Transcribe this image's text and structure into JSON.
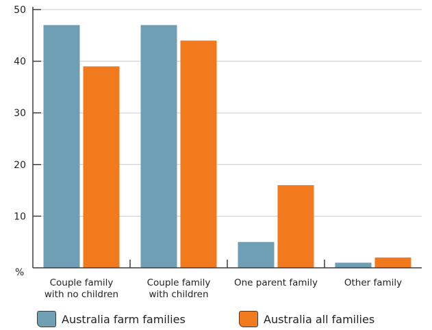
{
  "chart_data": {
    "type": "bar",
    "categories": [
      [
        "Couple family",
        "with no children"
      ],
      [
        "Couple family",
        "with children"
      ],
      [
        "One parent family"
      ],
      [
        "Other family"
      ]
    ],
    "series": [
      {
        "name": "Australia farm families",
        "values": [
          47,
          47,
          5,
          1
        ],
        "color": "#6e9fb4"
      },
      {
        "name": "Australia all families",
        "values": [
          39,
          44,
          16,
          2
        ],
        "color": "#f07a1d"
      }
    ],
    "ylabel": "%",
    "ylim": [
      0,
      50
    ],
    "yticks": [
      10,
      20,
      30,
      40,
      50
    ],
    "grid": true,
    "legend_position": "bottom"
  }
}
